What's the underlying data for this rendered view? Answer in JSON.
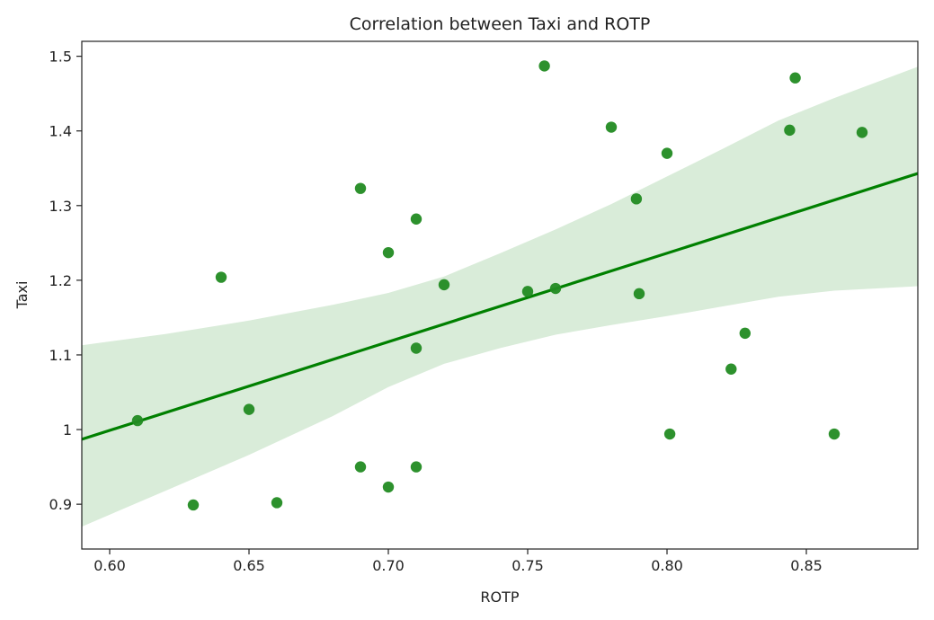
{
  "chart_data": {
    "type": "scatter",
    "title": "Correlation between Taxi and ROTP",
    "xlabel": "ROTP",
    "ylabel": "Taxi",
    "xlim": [
      0.59,
      0.89
    ],
    "ylim": [
      0.84,
      1.52
    ],
    "x_ticks": [
      0.6,
      0.65,
      0.7,
      0.75,
      0.8,
      0.85
    ],
    "x_tick_labels": [
      "0.60",
      "0.65",
      "0.70",
      "0.75",
      "0.80",
      "0.85"
    ],
    "y_ticks": [
      0.9,
      1.0,
      1.1,
      1.2,
      1.3,
      1.4,
      1.5
    ],
    "y_tick_labels": [
      "0.9",
      "1",
      "1.1",
      "1.2",
      "1.3",
      "1.4",
      "1.5"
    ],
    "grid": false,
    "colors": {
      "points": "#228b22",
      "line": "#008000",
      "band": "#d9ecd9"
    },
    "points": [
      {
        "x": 0.61,
        "y": 1.012
      },
      {
        "x": 0.63,
        "y": 0.899
      },
      {
        "x": 0.64,
        "y": 1.204
      },
      {
        "x": 0.65,
        "y": 1.027
      },
      {
        "x": 0.66,
        "y": 0.902
      },
      {
        "x": 0.69,
        "y": 1.323
      },
      {
        "x": 0.69,
        "y": 0.95
      },
      {
        "x": 0.7,
        "y": 1.237
      },
      {
        "x": 0.7,
        "y": 0.923
      },
      {
        "x": 0.71,
        "y": 1.282
      },
      {
        "x": 0.71,
        "y": 1.109
      },
      {
        "x": 0.71,
        "y": 0.95
      },
      {
        "x": 0.72,
        "y": 1.194
      },
      {
        "x": 0.75,
        "y": 1.185
      },
      {
        "x": 0.756,
        "y": 1.487
      },
      {
        "x": 0.76,
        "y": 1.189
      },
      {
        "x": 0.78,
        "y": 1.405
      },
      {
        "x": 0.789,
        "y": 1.309
      },
      {
        "x": 0.79,
        "y": 1.182
      },
      {
        "x": 0.8,
        "y": 1.37
      },
      {
        "x": 0.801,
        "y": 0.994
      },
      {
        "x": 0.823,
        "y": 1.081
      },
      {
        "x": 0.828,
        "y": 1.129
      },
      {
        "x": 0.844,
        "y": 1.401
      },
      {
        "x": 0.846,
        "y": 1.471
      },
      {
        "x": 0.86,
        "y": 0.994
      },
      {
        "x": 0.87,
        "y": 1.398
      }
    ],
    "regression": {
      "x": [
        0.59,
        0.89
      ],
      "y": [
        0.987,
        1.343
      ]
    },
    "confidence_band": {
      "x": [
        0.59,
        0.62,
        0.65,
        0.68,
        0.7,
        0.72,
        0.74,
        0.76,
        0.78,
        0.8,
        0.82,
        0.84,
        0.86,
        0.89
      ],
      "upper": [
        1.113,
        1.128,
        1.146,
        1.167,
        1.183,
        1.205,
        1.236,
        1.268,
        1.302,
        1.339,
        1.376,
        1.414,
        1.444,
        1.486
      ],
      "lower": [
        0.87,
        0.918,
        0.966,
        1.018,
        1.057,
        1.088,
        1.109,
        1.127,
        1.14,
        1.152,
        1.165,
        1.178,
        1.186,
        1.192
      ]
    }
  }
}
